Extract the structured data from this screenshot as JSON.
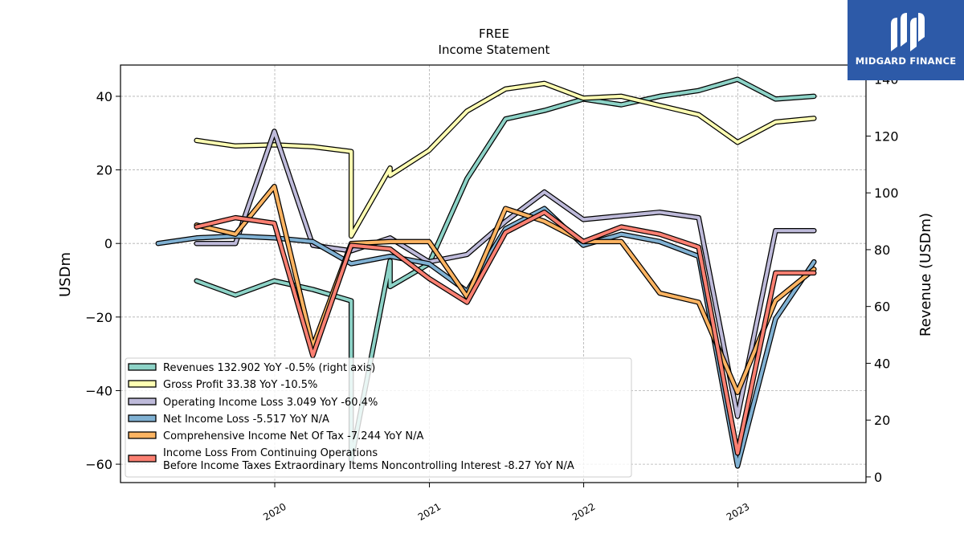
{
  "chart_data": {
    "type": "line",
    "title": "FREE",
    "subtitle": "Income Statement",
    "ylabel": "USDm",
    "y2label": "Revenue (USDm)",
    "ylim": [
      -65,
      48.5
    ],
    "y2lim": [
      -2,
      145
    ],
    "yticks": [
      "40",
      "20",
      "0",
      "−20",
      "−40",
      "−60"
    ],
    "y2ticks": [
      "140",
      "120",
      "100",
      "80",
      "60",
      "40",
      "20",
      "0"
    ],
    "xticks": [
      "2020",
      "2021",
      "2022",
      "2023"
    ],
    "grid": true,
    "legend_position": "lower-left",
    "series": [
      {
        "name": "Revenues  132.902 YoY -0.5% (right axis)",
        "axis": "right",
        "color": "#8dd3c7",
        "x": [
          "2019-06-30",
          "2019-09-30",
          "2019-12-31",
          "2020-03-31",
          "2020-06-30",
          "2020-06-30",
          "2020-09-30",
          "2020-09-30",
          "2020-12-31",
          "2021-03-31",
          "2021-06-30",
          "2021-09-30",
          "2021-12-31",
          "2022-03-31",
          "2022-06-30",
          "2022-09-30",
          "2022-12-31",
          "2023-03-31",
          "2023-06-30"
        ],
        "values": [
          69,
          64,
          69,
          66,
          62,
          6,
          76,
          67,
          75,
          105,
          126,
          129,
          133,
          131,
          134,
          136,
          140,
          133,
          134
        ]
      },
      {
        "name": "Gross Profit  33.38 YoY -10.5%",
        "axis": "left",
        "color": "#ffffb3",
        "x": [
          "2019-06-30",
          "2019-09-30",
          "2019-12-31",
          "2020-03-31",
          "2020-06-30",
          "2020-06-30",
          "2020-09-30",
          "2020-09-30",
          "2020-12-31",
          "2021-03-31",
          "2021-06-30",
          "2021-09-30",
          "2021-12-31",
          "2022-03-31",
          "2022-06-30",
          "2022-09-30",
          "2022-12-31",
          "2023-03-31",
          "2023-06-30"
        ],
        "values": [
          28,
          26.5,
          26.8,
          26.3,
          25,
          2,
          20.5,
          18.5,
          25.3,
          36,
          42,
          43.5,
          39.5,
          40,
          37.5,
          35,
          27.5,
          33,
          34
        ]
      },
      {
        "name": "Operating Income Loss  3.049 YoY -60.4%",
        "axis": "left",
        "color": "#bebada",
        "x": [
          "2019-06-30",
          "2019-09-30",
          "2019-12-31",
          "2020-03-31",
          "2020-06-30",
          "2020-09-30",
          "2020-12-31",
          "2021-03-31",
          "2021-06-30",
          "2021-09-30",
          "2021-12-31",
          "2022-03-31",
          "2022-06-30",
          "2022-09-30",
          "2022-12-31",
          "2023-03-31",
          "2023-06-30"
        ],
        "values": [
          0,
          0,
          30.5,
          -0.5,
          -2,
          1.5,
          -5,
          -3,
          6,
          14,
          6.5,
          7.5,
          8.5,
          7,
          -47,
          3.5,
          3.5
        ]
      },
      {
        "name": "Net Income Loss  -5.517 YoY N/A",
        "axis": "left",
        "color": "#80b1d3",
        "x": [
          "2019-03-31",
          "2019-06-30",
          "2019-09-30",
          "2019-12-31",
          "2020-03-31",
          "2020-06-30",
          "2020-09-30",
          "2020-12-31",
          "2021-03-31",
          "2021-06-30",
          "2021-09-30",
          "2021-12-31",
          "2022-03-31",
          "2022-06-30",
          "2022-09-30",
          "2022-12-31",
          "2023-03-31",
          "2023-06-30"
        ],
        "values": [
          0,
          1.5,
          2,
          1.5,
          0.5,
          -5.5,
          -3.5,
          -5.5,
          -13,
          4,
          9.5,
          -0.5,
          2.5,
          0.5,
          -3.5,
          -60.5,
          -20.5,
          -5
        ]
      },
      {
        "name": "Comprehensive Income Net Of Tax  -7.244 YoY N/A",
        "axis": "left",
        "color": "#fdb462",
        "x": [
          "2019-06-30",
          "2019-09-30",
          "2019-12-31",
          "2020-03-31",
          "2020-06-30",
          "2020-09-30",
          "2020-12-31",
          "2021-03-31",
          "2021-06-30",
          "2021-09-30",
          "2021-12-31",
          "2022-03-31",
          "2022-06-30",
          "2022-09-30",
          "2022-12-31",
          "2023-03-31",
          "2023-06-30"
        ],
        "values": [
          5,
          2.5,
          15.5,
          -28,
          0,
          0.5,
          0.5,
          -14.5,
          9.5,
          6,
          0.5,
          0.5,
          -13.5,
          -16,
          -40.5,
          -15.5,
          -7
        ]
      },
      {
        "name": "Income Loss From Continuing Operations\nBefore Income Taxes Extraordinary Items Noncontrolling Interest  -8.27 YoY N/A",
        "axis": "left",
        "color": "#fb8072",
        "x": [
          "2019-06-30",
          "2019-09-30",
          "2019-12-31",
          "2020-03-31",
          "2020-06-30",
          "2020-09-30",
          "2020-12-31",
          "2021-03-31",
          "2021-06-30",
          "2021-09-30",
          "2021-12-31",
          "2022-03-31",
          "2022-06-30",
          "2022-09-30",
          "2022-12-31",
          "2023-03-31",
          "2023-06-30"
        ],
        "values": [
          4.5,
          7,
          5.5,
          -30.5,
          -0.5,
          -1.5,
          -9.5,
          -16,
          3,
          8.5,
          0.5,
          4.5,
          2.5,
          -1,
          -57,
          -8,
          -8
        ]
      }
    ]
  },
  "logo": {
    "text": "MIDGARD FINANCE",
    "bg_color": "#2d5aa8"
  }
}
